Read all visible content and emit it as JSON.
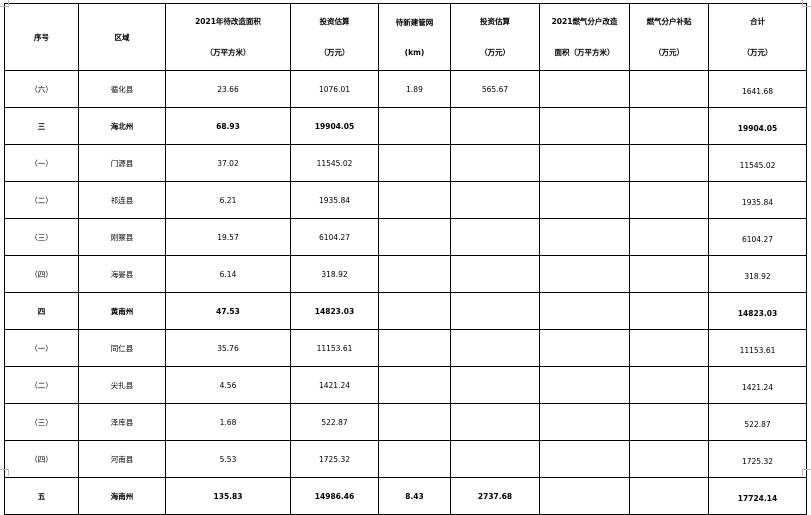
{
  "headers": [
    {
      "l1": "序号",
      "l2": ""
    },
    {
      "l1": "区域",
      "l2": ""
    },
    {
      "l1": "2021年待改造面积",
      "l2": "（万平方米）"
    },
    {
      "l1": "投资估算",
      "l2": "（万元）"
    },
    {
      "l1": "待新建管网",
      "l2": "(km)"
    },
    {
      "l1": "投资估算",
      "l2": "（万元）"
    },
    {
      "l1": "2021燃气分户改造",
      "l2": "面积（万平方米）"
    },
    {
      "l1": "燃气分户补贴",
      "l2": "（万元）"
    },
    {
      "l1": "合计",
      "l2": "（万元）"
    }
  ],
  "rows": [
    {
      "bold": false,
      "cells": [
        "（六）",
        "循化县",
        "23.66",
        "1076.01",
        "1.89",
        "565.67",
        "",
        "",
        "1641.68"
      ]
    },
    {
      "bold": true,
      "cells": [
        "三",
        "海北州",
        "68.93",
        "19904.05",
        "",
        "",
        "",
        "",
        "19904.05"
      ]
    },
    {
      "bold": false,
      "cells": [
        "（一）",
        "门源县",
        "37.02",
        "11545.02",
        "",
        "",
        "",
        "",
        "11545.02"
      ]
    },
    {
      "bold": false,
      "cells": [
        "（二）",
        "祁连县",
        "6.21",
        "1935.84",
        "",
        "",
        "",
        "",
        "1935.84"
      ]
    },
    {
      "bold": false,
      "cells": [
        "（三）",
        "刚察县",
        "19.57",
        "6104.27",
        "",
        "",
        "",
        "",
        "6104.27"
      ]
    },
    {
      "bold": false,
      "cells": [
        "（四）",
        "海晏县",
        "6.14",
        "318.92",
        "",
        "",
        "",
        "",
        "318.92"
      ]
    },
    {
      "bold": true,
      "cells": [
        "四",
        "黄南州",
        "47.53",
        "14823.03",
        "",
        "",
        "",
        "",
        "14823.03"
      ]
    },
    {
      "bold": false,
      "cells": [
        "（一）",
        "同仁县",
        "35.76",
        "11153.61",
        "",
        "",
        "",
        "",
        "11153.61"
      ]
    },
    {
      "bold": false,
      "cells": [
        "（二）",
        "尖扎县",
        "4.56",
        "1421.24",
        "",
        "",
        "",
        "",
        "1421.24"
      ]
    },
    {
      "bold": false,
      "cells": [
        "（三）",
        "泽库县",
        "1.68",
        "522.87",
        "",
        "",
        "",
        "",
        "522.87"
      ]
    },
    {
      "bold": false,
      "cells": [
        "（四）",
        "河南县",
        "5.53",
        "1725.32",
        "",
        "",
        "",
        "",
        "1725.32"
      ]
    },
    {
      "bold": true,
      "cells": [
        "五",
        "海南州",
        "135.83",
        "14986.46",
        "8.43",
        "2737.68",
        "",
        "",
        "17724.14"
      ]
    }
  ]
}
